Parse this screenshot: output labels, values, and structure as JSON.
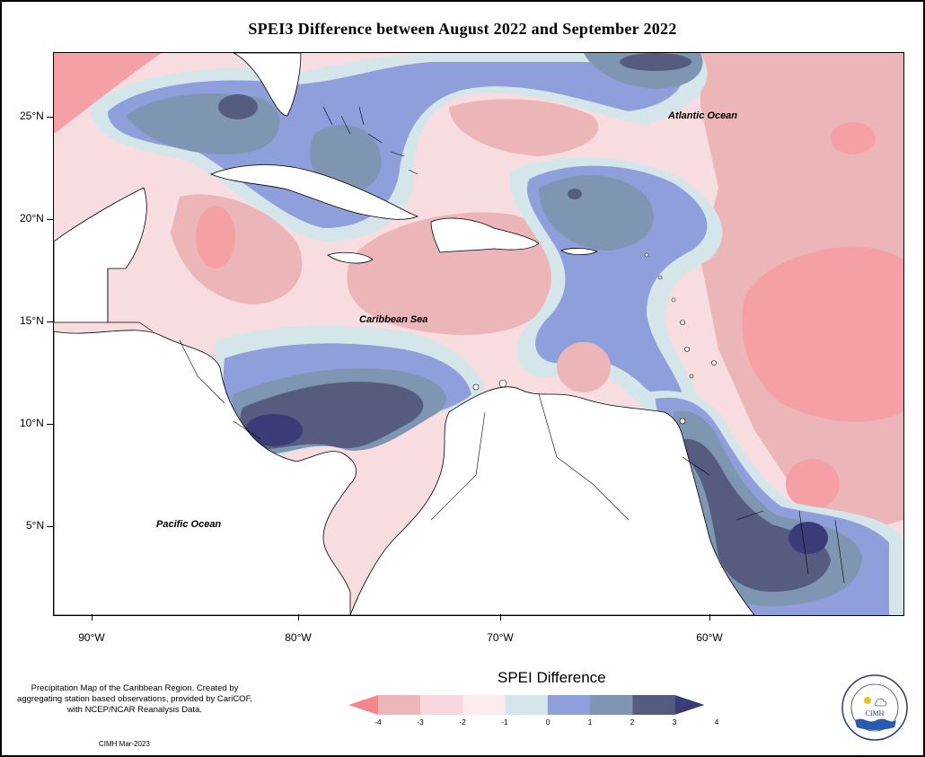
{
  "title": "SPEI3 Difference between August 2022 and September 2022",
  "map": {
    "ocean_labels": {
      "atlantic": "Atlantic Ocean",
      "caribbean": "Caribbean Sea",
      "pacific": "Pacific Ocean"
    },
    "lat_ticks": [
      "25°N",
      "20°N",
      "15°N",
      "10°N",
      "5°N"
    ],
    "lon_ticks": [
      "90°W",
      "80°W",
      "70°W",
      "60°W"
    ],
    "background_color": "#f6e6e8",
    "land_color": "#ffffff"
  },
  "legend": {
    "title": "SPEI Difference",
    "breaks": [
      "-4",
      "-3",
      "-2",
      "-1",
      "0",
      "1",
      "2",
      "3",
      "4"
    ],
    "colors": [
      "#f5868a",
      "#ecb6b9",
      "#f8d8dc",
      "#fcecee",
      "#d5e6ea",
      "#8f9fdc",
      "#7f96b2",
      "#565c80",
      "#3a3c78"
    ]
  },
  "credits": {
    "text": "Precipitation Map of the Caribbean Region. Created by aggregating station based observations, provided by CariCOF, with NCEP/NCAR Reanalysis Data.",
    "date": "CIMH Mar-2023"
  },
  "logo": {
    "acronym": "CIMH"
  }
}
